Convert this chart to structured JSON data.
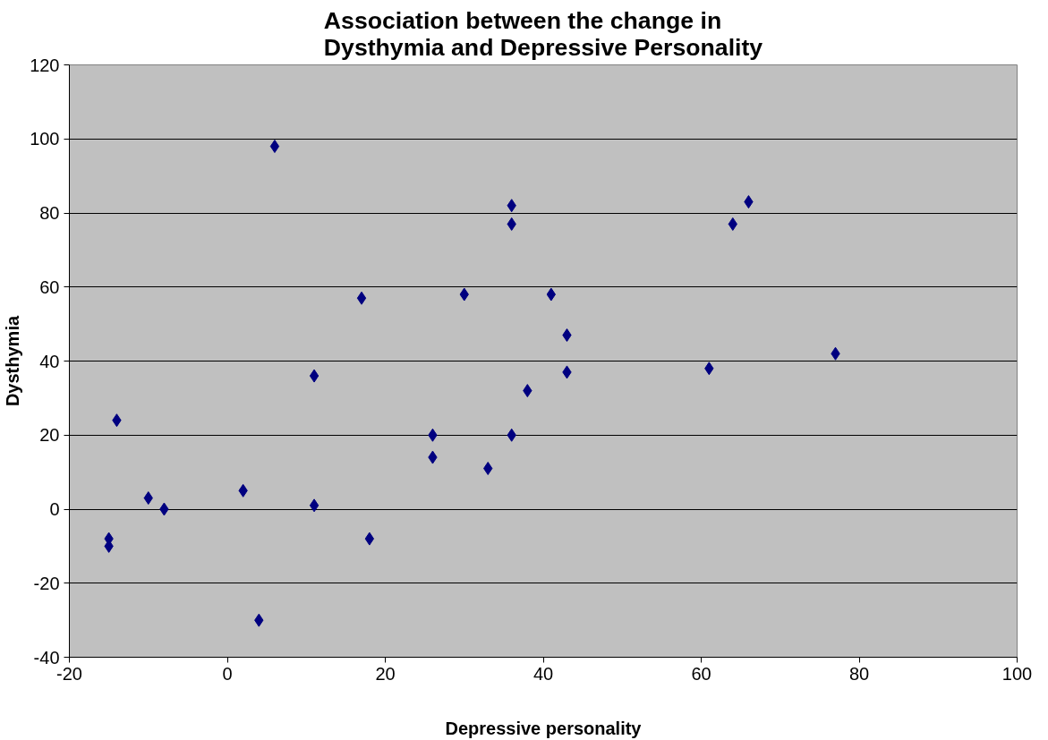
{
  "chart_data": {
    "type": "scatter",
    "title": "Association between the change in\nDysthymia and Depressive Personality",
    "xlabel": "Depressive personality",
    "ylabel": "Dysthymia",
    "x": [
      6,
      36,
      36,
      64,
      66,
      17,
      30,
      41,
      43,
      11,
      43,
      38,
      61,
      77,
      -14,
      26,
      36,
      26,
      33,
      -10,
      -8,
      2,
      11,
      18,
      -15,
      -15,
      4
    ],
    "series": [
      {
        "color": "#000080",
        "values": [
          98,
          82,
          77,
          77,
          83,
          57,
          58,
          58,
          47,
          36,
          37,
          32,
          38,
          42,
          24,
          20,
          20,
          14,
          11,
          3,
          0,
          5,
          1,
          -8,
          -8,
          -10,
          -30
        ]
      }
    ],
    "xlim": [
      -20,
      100
    ],
    "xticks": [
      -20,
      0,
      20,
      40,
      60,
      80,
      100
    ],
    "ylim": [
      -40,
      120
    ],
    "yticks": [
      -40,
      -20,
      0,
      20,
      40,
      60,
      80,
      100,
      120
    ],
    "grid": "y",
    "marker": "diamond"
  }
}
